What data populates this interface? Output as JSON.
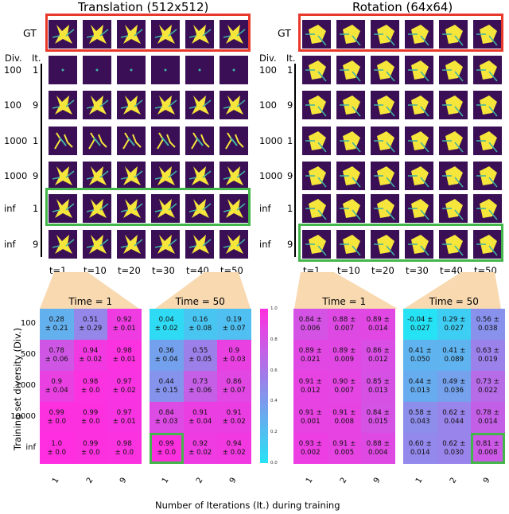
{
  "translation": {
    "title": "Translation (512x512)",
    "gt_label": "GT",
    "div_header": "Div.",
    "it_header": "It.",
    "rows": [
      {
        "div": "100",
        "it": "1"
      },
      {
        "div": "100",
        "it": "9"
      },
      {
        "div": "1000",
        "it": "1"
      },
      {
        "div": "1000",
        "it": "9"
      },
      {
        "div": "inf",
        "it": "1"
      },
      {
        "div": "inf",
        "it": "9"
      }
    ],
    "t_labels": [
      "t=1",
      "t=10",
      "t=20",
      "t=30",
      "t=40",
      "t=50"
    ]
  },
  "rotation": {
    "title": "Rotation (64x64)",
    "gt_label": "GT",
    "div_header": "Div.",
    "it_header": "It.",
    "rows": [
      {
        "div": "100",
        "it": "1"
      },
      {
        "div": "100",
        "it": "9"
      },
      {
        "div": "1000",
        "it": "1"
      },
      {
        "div": "1000",
        "it": "9"
      },
      {
        "div": "inf",
        "it": "1"
      },
      {
        "div": "inf",
        "it": "9"
      }
    ],
    "t_labels": [
      "t=1",
      "t=10",
      "t=20",
      "t=30",
      "t=40",
      "t=50"
    ]
  },
  "heatmaps": {
    "y_axis_label": "Training set diversity (Div.)",
    "x_axis_label": "Number of Iterations (It.) during training",
    "y_ticks": [
      "100",
      "500",
      "1000",
      "10000",
      "inf"
    ],
    "x_ticks": [
      "1",
      "2",
      "9"
    ],
    "colorbar_ticks": [
      "1.0",
      "0.8",
      "0.6",
      "0.4",
      "0.2",
      "0.0"
    ],
    "colors": {
      "low": "#26e2f5",
      "high": "#ff2ee0"
    },
    "panels": [
      {
        "title": "Time = 1",
        "cells": [
          [
            "0.28\n± 0.21",
            "0.51\n± 0.29",
            "0.92\n± 0.01"
          ],
          [
            "0.78\n± 0.06",
            "0.94\n± 0.02",
            "0.98\n± 0.01"
          ],
          [
            "0.9\n± 0.04",
            "0.98\n± 0.0",
            "0.97\n± 0.02"
          ],
          [
            "0.99\n± 0.0",
            "0.99\n± 0.0",
            "0.97\n± 0.01"
          ],
          [
            "1.0\n± 0.0",
            "0.99\n± 0.0",
            "0.98\n± 0.0"
          ]
        ]
      },
      {
        "title": "Time = 50",
        "cells": [
          [
            "0.04\n± 0.02",
            "0.16\n± 0.08",
            "0.19\n± 0.07"
          ],
          [
            "0.36\n± 0.04",
            "0.55\n± 0.05",
            "0.9\n± 0.03"
          ],
          [
            "0.44\n± 0.15",
            "0.73\n± 0.06",
            "0.86\n± 0.07"
          ],
          [
            "0.84\n± 0.03",
            "0.91\n± 0.04",
            "0.91\n± 0.02"
          ],
          [
            "0.99\n± 0.0",
            "0.92\n± 0.02",
            "0.94\n± 0.02"
          ]
        ]
      },
      {
        "title": "Time = 1",
        "cells": [
          [
            "0.84 ±\n0.006",
            "0.88 ±\n0.007",
            "0.89 ±\n0.014"
          ],
          [
            "0.89 ±\n0.021",
            "0.89 ±\n0.009",
            "0.86 ±\n0.012"
          ],
          [
            "0.91 ±\n0.012",
            "0.90 ±\n0.007",
            "0.85 ±\n0.013"
          ],
          [
            "0.91 ±\n0.001",
            "0.91 ±\n0.008",
            "0.84 ±\n0.015"
          ],
          [
            "0.93 ±\n0.002",
            "0.91 ±\n0.005",
            "0.88 ±\n0.004"
          ]
        ]
      },
      {
        "title": "Time = 50",
        "cells": [
          [
            "-0.04 ±\n0.027",
            "0.29 ±\n0.027",
            "0.56 ±\n0.038"
          ],
          [
            "0.41 ±\n0.050",
            "0.41 ±\n0.089",
            "0.63 ±\n0.019"
          ],
          [
            "0.44 ±\n0.013",
            "0.49 ±\n0.036",
            "0.73 ±\n0.022"
          ],
          [
            "0.58 ±\n0.043",
            "0.62 ±\n0.044",
            "0.78 ±\n0.014"
          ],
          [
            "0.60 ±\n0.014",
            "0.62 ±\n0.030",
            "0.81 ±\n0.008"
          ]
        ]
      }
    ]
  }
}
